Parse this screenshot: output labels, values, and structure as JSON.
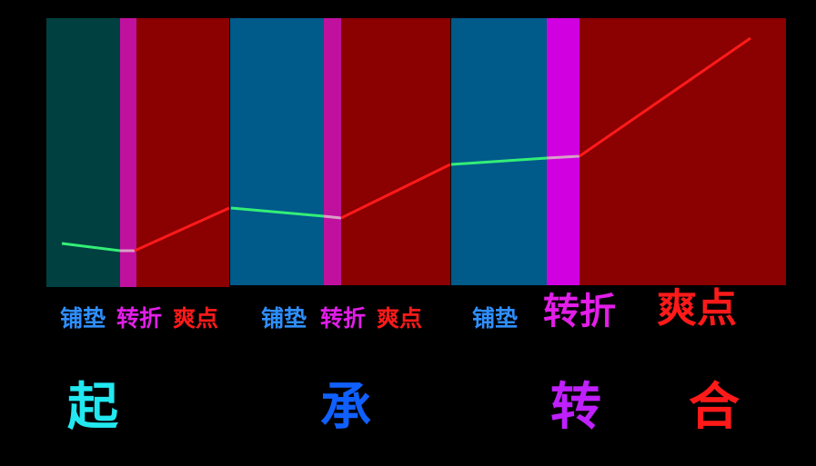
{
  "phase_labels": {
    "setup": "铺垫",
    "turn": "转折",
    "payoff": "爽点"
  },
  "stages": {
    "qi": "起",
    "cheng": "承",
    "zhuan": "转",
    "he": "合"
  },
  "colors": {
    "background": "#000000",
    "setup_block_1": "#004040",
    "setup_block": "#005a8a",
    "turn_block": "#c0119e",
    "turn_block_final": "#d000e0",
    "payoff_block": "#8b0000",
    "setup_line": "#33ee77",
    "payoff_line": "#ff1a1a",
    "stage_qi": "#22e8f0",
    "stage_cheng": "#1060ff",
    "stage_zhuan": "#c020ff",
    "stage_he": "#ff1a1a"
  }
}
